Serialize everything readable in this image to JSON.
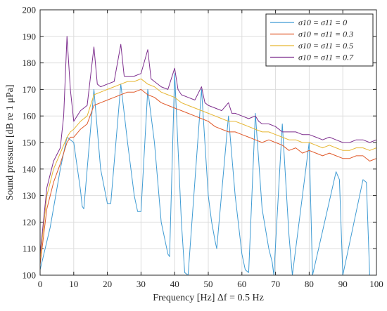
{
  "chart_data": {
    "type": "line",
    "title": "",
    "xlabel": "Frequency [Hz] Δf = 0.5 Hz",
    "ylabel": "Sound pressure [dB re 1 μPa]",
    "xlim": [
      0,
      100
    ],
    "ylim": [
      100,
      200
    ],
    "xticks": [
      "0",
      "10",
      "20",
      "30",
      "40",
      "50",
      "60",
      "70",
      "80",
      "90",
      "100"
    ],
    "yticks": [
      "100",
      "110",
      "120",
      "130",
      "140",
      "150",
      "160",
      "170",
      "180",
      "190",
      "200"
    ],
    "grid": true,
    "legend_position": "top-right",
    "series": [
      {
        "name": "σ10 = σ11 = 0",
        "color": "#3f9bd3",
        "points": [
          [
            0,
            102
          ],
          [
            3,
            118
          ],
          [
            6,
            140
          ],
          [
            8,
            152
          ],
          [
            10,
            150
          ],
          [
            12,
            132
          ],
          [
            12.5,
            126
          ],
          [
            13,
            125
          ],
          [
            16,
            170
          ],
          [
            18,
            140
          ],
          [
            20,
            127
          ],
          [
            21,
            127
          ],
          [
            24,
            172
          ],
          [
            26,
            150
          ],
          [
            28,
            130
          ],
          [
            29,
            124
          ],
          [
            30,
            124
          ],
          [
            32,
            170
          ],
          [
            34,
            150
          ],
          [
            36,
            120
          ],
          [
            38,
            108
          ],
          [
            38.5,
            107
          ],
          [
            40,
            176
          ],
          [
            42,
            120
          ],
          [
            43,
            101
          ],
          [
            44,
            100
          ],
          [
            48,
            170
          ],
          [
            50,
            130
          ],
          [
            51,
            120
          ],
          [
            52,
            113
          ],
          [
            52.5,
            110
          ],
          [
            56,
            160
          ],
          [
            58,
            130
          ],
          [
            60,
            108
          ],
          [
            61,
            102
          ],
          [
            62,
            101
          ],
          [
            64,
            161
          ],
          [
            66,
            125
          ],
          [
            68,
            110
          ],
          [
            69,
            105
          ],
          [
            69.5,
            100
          ],
          [
            72,
            157
          ],
          [
            74,
            115
          ],
          [
            75,
            100
          ],
          [
            80,
            150
          ],
          [
            81,
            100
          ],
          [
            88,
            139
          ],
          [
            89,
            136
          ],
          [
            90,
            100
          ],
          [
            96,
            136
          ],
          [
            97,
            135
          ],
          [
            98,
            100
          ]
        ]
      },
      {
        "name": "σ10 = σ11 = 0.3",
        "color": "#e05a2b",
        "points": [
          [
            0,
            104
          ],
          [
            2,
            125
          ],
          [
            4,
            135
          ],
          [
            6,
            142
          ],
          [
            8,
            150
          ],
          [
            9,
            152
          ],
          [
            10,
            152
          ],
          [
            12,
            155
          ],
          [
            14,
            157
          ],
          [
            16,
            164
          ],
          [
            18,
            165
          ],
          [
            20,
            166
          ],
          [
            22,
            167
          ],
          [
            24,
            168
          ],
          [
            26,
            169
          ],
          [
            28,
            169
          ],
          [
            30,
            170
          ],
          [
            32,
            168
          ],
          [
            34,
            167
          ],
          [
            36,
            165
          ],
          [
            38,
            164
          ],
          [
            40,
            163
          ],
          [
            42,
            162
          ],
          [
            44,
            161
          ],
          [
            46,
            160
          ],
          [
            48,
            159
          ],
          [
            50,
            158
          ],
          [
            52,
            156
          ],
          [
            54,
            155
          ],
          [
            56,
            154
          ],
          [
            58,
            154
          ],
          [
            60,
            153
          ],
          [
            62,
            152
          ],
          [
            64,
            151
          ],
          [
            66,
            150
          ],
          [
            68,
            151
          ],
          [
            70,
            150
          ],
          [
            72,
            149
          ],
          [
            74,
            147
          ],
          [
            76,
            148
          ],
          [
            78,
            146
          ],
          [
            80,
            147
          ],
          [
            82,
            146
          ],
          [
            84,
            145
          ],
          [
            86,
            146
          ],
          [
            88,
            145
          ],
          [
            90,
            144
          ],
          [
            92,
            144
          ],
          [
            94,
            145
          ],
          [
            96,
            145
          ],
          [
            98,
            143
          ],
          [
            100,
            144
          ]
        ]
      },
      {
        "name": "σ10 = σ11 = 0.5",
        "color": "#e6b632",
        "points": [
          [
            0,
            106
          ],
          [
            2,
            130
          ],
          [
            4,
            140
          ],
          [
            6,
            146
          ],
          [
            8,
            152
          ],
          [
            9,
            154
          ],
          [
            10,
            155
          ],
          [
            12,
            158
          ],
          [
            14,
            160
          ],
          [
            16,
            168
          ],
          [
            18,
            169
          ],
          [
            20,
            170
          ],
          [
            22,
            171
          ],
          [
            24,
            172
          ],
          [
            26,
            173
          ],
          [
            28,
            173
          ],
          [
            30,
            174
          ],
          [
            32,
            172
          ],
          [
            34,
            171
          ],
          [
            36,
            169
          ],
          [
            38,
            168
          ],
          [
            40,
            167
          ],
          [
            42,
            165
          ],
          [
            44,
            164
          ],
          [
            46,
            163
          ],
          [
            48,
            162
          ],
          [
            50,
            161
          ],
          [
            52,
            160
          ],
          [
            54,
            159
          ],
          [
            56,
            158
          ],
          [
            58,
            158
          ],
          [
            60,
            157
          ],
          [
            62,
            156
          ],
          [
            64,
            155
          ],
          [
            66,
            154
          ],
          [
            68,
            154
          ],
          [
            70,
            153
          ],
          [
            72,
            152
          ],
          [
            74,
            151
          ],
          [
            76,
            151
          ],
          [
            78,
            150
          ],
          [
            80,
            150
          ],
          [
            82,
            149
          ],
          [
            84,
            148
          ],
          [
            86,
            149
          ],
          [
            88,
            148
          ],
          [
            90,
            147
          ],
          [
            92,
            147
          ],
          [
            94,
            148
          ],
          [
            96,
            148
          ],
          [
            98,
            147
          ],
          [
            100,
            148
          ]
        ]
      },
      {
        "name": "σ10 = σ11 = 0.7",
        "color": "#7e2f8e",
        "points": [
          [
            0,
            108
          ],
          [
            2,
            133
          ],
          [
            4,
            143
          ],
          [
            6,
            148
          ],
          [
            7,
            160
          ],
          [
            8,
            190
          ],
          [
            9,
            170
          ],
          [
            10,
            158
          ],
          [
            12,
            162
          ],
          [
            14,
            164
          ],
          [
            16,
            186
          ],
          [
            17,
            172
          ],
          [
            18,
            171
          ],
          [
            20,
            172
          ],
          [
            22,
            173
          ],
          [
            24,
            187
          ],
          [
            25,
            175
          ],
          [
            26,
            175
          ],
          [
            28,
            175
          ],
          [
            30,
            176
          ],
          [
            32,
            185
          ],
          [
            33,
            174
          ],
          [
            34,
            173
          ],
          [
            36,
            171
          ],
          [
            38,
            170
          ],
          [
            40,
            178
          ],
          [
            41,
            170
          ],
          [
            42,
            168
          ],
          [
            44,
            167
          ],
          [
            46,
            166
          ],
          [
            48,
            171
          ],
          [
            49,
            165
          ],
          [
            50,
            164
          ],
          [
            52,
            163
          ],
          [
            54,
            162
          ],
          [
            56,
            165
          ],
          [
            57,
            161
          ],
          [
            58,
            161
          ],
          [
            60,
            160
          ],
          [
            62,
            159
          ],
          [
            64,
            160
          ],
          [
            65,
            158
          ],
          [
            66,
            157
          ],
          [
            68,
            157
          ],
          [
            70,
            156
          ],
          [
            72,
            154
          ],
          [
            74,
            154
          ],
          [
            76,
            154
          ],
          [
            78,
            153
          ],
          [
            80,
            153
          ],
          [
            82,
            152
          ],
          [
            84,
            151
          ],
          [
            86,
            152
          ],
          [
            88,
            151
          ],
          [
            90,
            150
          ],
          [
            92,
            150
          ],
          [
            94,
            151
          ],
          [
            96,
            151
          ],
          [
            98,
            150
          ],
          [
            100,
            151
          ]
        ]
      }
    ]
  }
}
